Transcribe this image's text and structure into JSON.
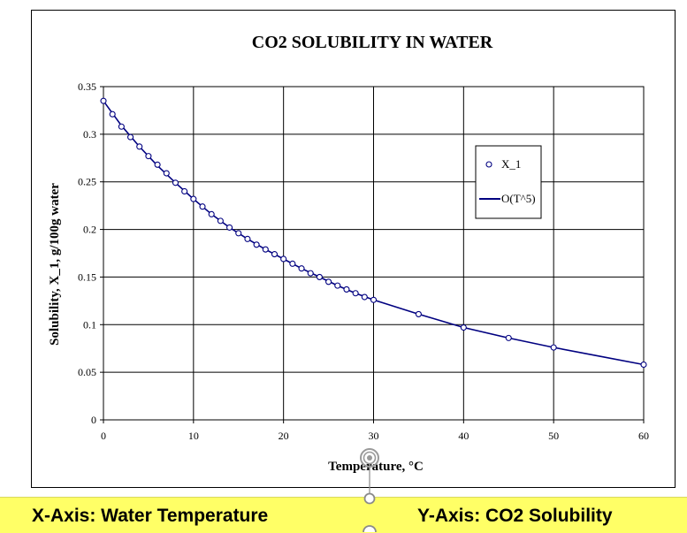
{
  "chart_data": {
    "type": "line",
    "title": "CO2 SOLUBILITY IN WATER",
    "xlabel": "Temperature, °C",
    "ylabel": "Solubility, X_1, g/100g water",
    "xlim": [
      0,
      60
    ],
    "ylim": [
      0,
      0.35
    ],
    "xticks": [
      0,
      10,
      20,
      30,
      40,
      50,
      60
    ],
    "yticks": [
      0,
      0.05,
      0.1,
      0.15,
      0.2,
      0.25,
      0.3,
      0.35
    ],
    "ytick_labels": [
      "0",
      "0.05",
      "0.1",
      "0.15",
      "0.2",
      "0.25",
      "0.3",
      "0.35"
    ],
    "grid": true,
    "legend_position": "upper-right",
    "series": [
      {
        "name": "X_1",
        "style": "markers",
        "color": "#000080",
        "x": [
          0,
          1,
          2,
          3,
          4,
          5,
          6,
          7,
          8,
          9,
          10,
          11,
          12,
          13,
          14,
          15,
          16,
          17,
          18,
          19,
          20,
          21,
          22,
          23,
          24,
          25,
          26,
          27,
          28,
          29,
          30,
          35,
          40,
          45,
          50,
          60
        ],
        "values": [
          0.335,
          0.321,
          0.308,
          0.297,
          0.287,
          0.277,
          0.268,
          0.259,
          0.249,
          0.24,
          0.232,
          0.224,
          0.216,
          0.209,
          0.202,
          0.196,
          0.19,
          0.184,
          0.179,
          0.174,
          0.169,
          0.164,
          0.159,
          0.154,
          0.15,
          0.145,
          0.141,
          0.137,
          0.133,
          0.129,
          0.126,
          0.111,
          0.097,
          0.086,
          0.076,
          0.058
        ]
      },
      {
        "name": "O(T^5)",
        "style": "line",
        "color": "#000080",
        "x": [
          0,
          2,
          4,
          6,
          8,
          10,
          12,
          14,
          16,
          18,
          20,
          22,
          24,
          26,
          28,
          30,
          35,
          40,
          45,
          50,
          55,
          60
        ],
        "values": [
          0.335,
          0.309,
          0.287,
          0.267,
          0.249,
          0.232,
          0.216,
          0.202,
          0.19,
          0.179,
          0.169,
          0.159,
          0.15,
          0.141,
          0.133,
          0.126,
          0.111,
          0.097,
          0.086,
          0.076,
          0.067,
          0.058
        ]
      }
    ]
  },
  "captions": {
    "x_axis": "X-Axis: Water Temperature",
    "y_axis": "Y-Axis: CO2 Solubility"
  },
  "colors": {
    "series": "#000080",
    "caption_bar": "#ffff66"
  }
}
